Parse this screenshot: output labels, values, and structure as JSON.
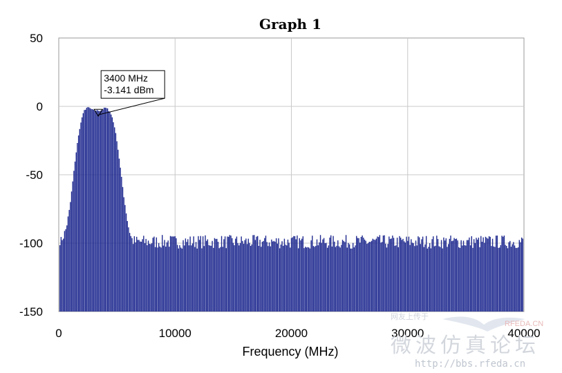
{
  "chart_data": {
    "type": "bar",
    "title": "Graph 1",
    "xlabel": "Frequency (MHz)",
    "ylabel": "",
    "xlim": [
      0,
      40000
    ],
    "ylim": [
      -150,
      50
    ],
    "x_ticks": [
      0,
      10000,
      20000,
      30000,
      40000
    ],
    "x_tick_labels": [
      "0",
      "10000",
      "20000",
      "30000",
      "40000"
    ],
    "y_ticks": [
      50,
      0,
      -50,
      -100,
      -150
    ],
    "y_tick_labels": [
      "50",
      "0",
      "-50",
      "-100",
      "-150"
    ],
    "grid": true,
    "line_spacing_mhz": 100,
    "series_color": "#1f2a8f",
    "series": [
      {
        "envelope_x": [
          0,
          200,
          400,
          600,
          800,
          1000,
          1200,
          1400,
          1600,
          1800,
          2000,
          2200,
          2400,
          2600,
          2800,
          3000,
          3200,
          3400,
          3600,
          3800,
          4000,
          4200,
          4400,
          4600,
          4800,
          5000,
          5200,
          5400,
          5600,
          5800,
          6000,
          6200,
          6400
        ],
        "envelope_y": [
          -99,
          -98,
          -95,
          -90,
          -82,
          -70,
          -55,
          -40,
          -27,
          -16,
          -8,
          -3,
          -1,
          -1,
          -2,
          -3,
          -3,
          -3,
          -3,
          -2,
          -1,
          -2,
          -4,
          -8,
          -15,
          -25,
          -38,
          -52,
          -66,
          -78,
          -88,
          -95,
          -99
        ]
      }
    ],
    "annotations": [
      {
        "x": 3400,
        "y": -3.141,
        "line1": "3400 MHz",
        "line2": "-3.141 dBm"
      }
    ]
  },
  "watermark": {
    "chinese": "微波仿真论坛",
    "url": "http://bbs.rfeda.cn",
    "small": "RFEDA.CN",
    "tiny": "网友上传于"
  }
}
